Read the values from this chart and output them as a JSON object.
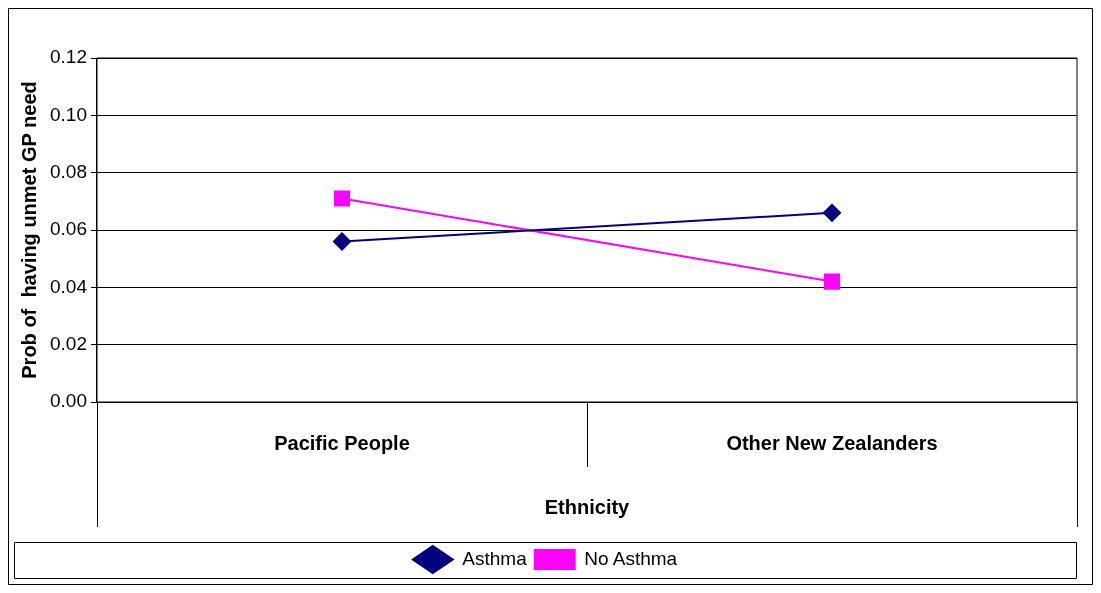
{
  "chart_data": {
    "type": "line",
    "xlabel": "Ethnicity",
    "ylabel": "Prob of  having unmet GP need",
    "categories": [
      "Pacific People",
      "Other New Zealanders"
    ],
    "series": [
      {
        "name": "Asthma",
        "color": "#000080",
        "values": [
          0.056,
          0.066
        ],
        "marker": "diamond"
      },
      {
        "name": "No Asthma",
        "color": "#ff00ff",
        "values": [
          0.071,
          0.042
        ],
        "marker": "square"
      }
    ],
    "ylim": [
      0,
      0.12
    ],
    "yticks": [
      {
        "value": 0,
        "label": "0.00"
      },
      {
        "value": 0.02,
        "label": "0.02"
      },
      {
        "value": 0.04,
        "label": "0.04"
      },
      {
        "value": 0.06,
        "label": "0.06"
      },
      {
        "value": 0.08,
        "label": "0.08"
      },
      {
        "value": 0.1,
        "label": "0.10"
      },
      {
        "value": 0.12,
        "label": "0.12"
      }
    ],
    "grid": "y",
    "legend": "bottom",
    "line_style": "solid"
  }
}
